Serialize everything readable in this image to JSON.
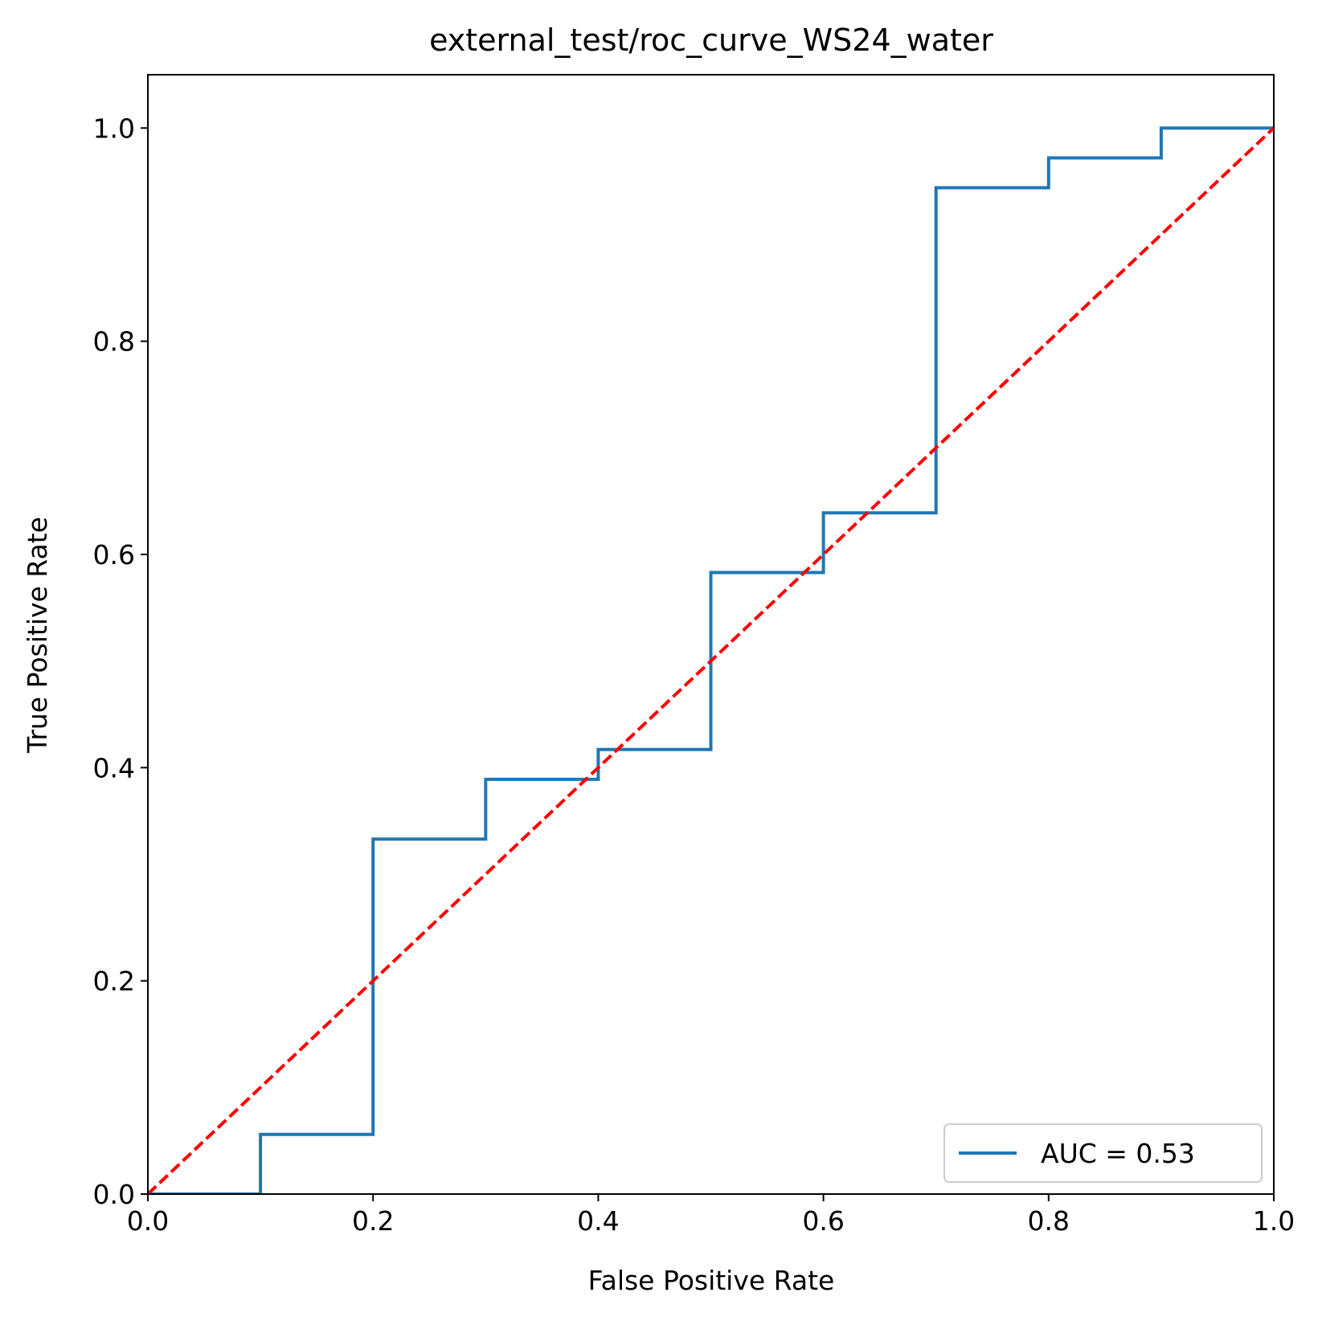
{
  "chart_data": {
    "type": "line",
    "title": "external_test/roc_curve_WS24_water",
    "xlabel": "False Positive Rate",
    "ylabel": "True Positive Rate",
    "xlim": [
      0.0,
      1.0
    ],
    "ylim": [
      0.0,
      1.05
    ],
    "xticks": [
      "0.0",
      "0.2",
      "0.4",
      "0.6",
      "0.8",
      "1.0"
    ],
    "yticks": [
      "0.0",
      "0.2",
      "0.4",
      "0.6",
      "0.8",
      "1.0"
    ],
    "grid": false,
    "legend_position": "lower-right",
    "series": [
      {
        "name": "AUC = 0.53",
        "color": "#1f77b4",
        "style": "solid",
        "x": [
          0.0,
          0.1,
          0.1,
          0.2,
          0.2,
          0.3,
          0.3,
          0.4,
          0.4,
          0.5,
          0.5,
          0.6,
          0.6,
          0.7,
          0.7,
          0.8,
          0.8,
          0.9,
          0.9,
          1.0
        ],
        "y": [
          0.0,
          0.0,
          0.056,
          0.056,
          0.333,
          0.333,
          0.389,
          0.389,
          0.417,
          0.417,
          0.583,
          0.583,
          0.639,
          0.639,
          0.944,
          0.944,
          0.972,
          0.972,
          1.0,
          1.0
        ]
      },
      {
        "color": "#ff0000",
        "style": "dashed",
        "x": [
          0.0,
          1.0
        ],
        "y": [
          0.0,
          1.0
        ]
      }
    ]
  }
}
